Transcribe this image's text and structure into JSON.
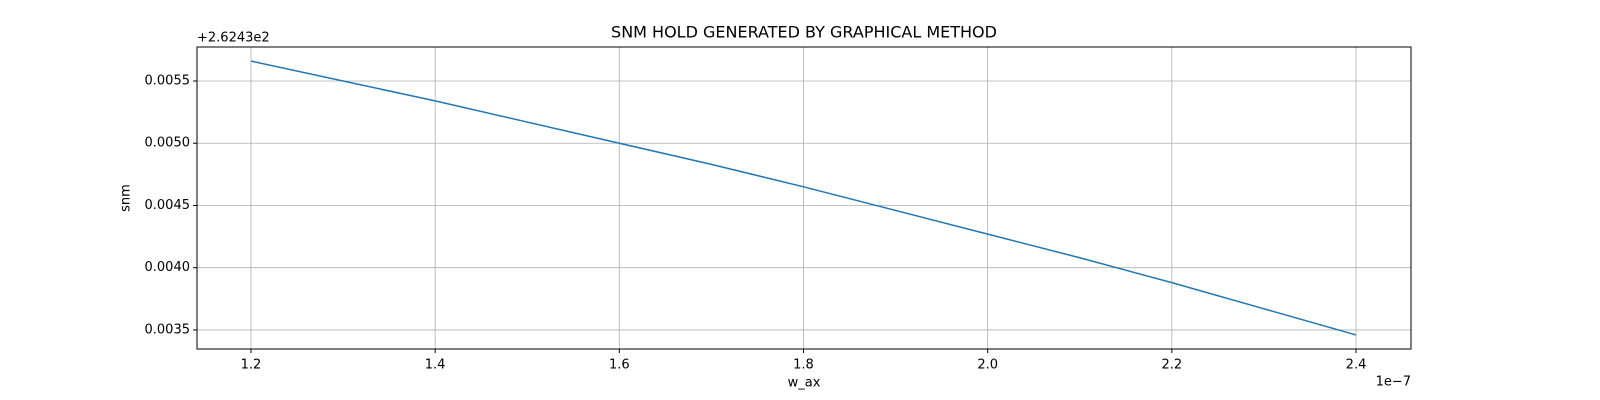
{
  "chart_data": {
    "type": "line",
    "title": "SNM HOLD GENERATED BY GRAPHICAL METHOD",
    "x_label": "w_ax",
    "y_label": "snm",
    "x_offset_text": "1e−7",
    "y_offset_text": "+2.6243e2",
    "x": [
      1.2,
      1.3,
      1.4,
      1.5,
      1.6,
      1.7,
      1.8,
      1.9,
      2.0,
      2.1,
      2.2,
      2.3,
      2.4
    ],
    "values": [
      0.00566,
      0.0055,
      0.00534,
      0.00517,
      0.005,
      0.00483,
      0.00465,
      0.00446,
      0.00427,
      0.00408,
      0.00388,
      0.00367,
      0.00346
    ],
    "color": "#1f77b4",
    "xlim": [
      1.1414,
      2.4597
    ],
    "ylim": [
      0.003347,
      0.005773
    ],
    "xticks": [
      1.2,
      1.4,
      1.6,
      1.8,
      {
        "value": 2.0,
        "label": "2.0"
      },
      2.2,
      2.4
    ],
    "yticks": [
      0.0035,
      {
        "value": 0.004,
        "label": "0.0040"
      },
      0.0045,
      {
        "value": 0.005,
        "label": "0.0050"
      },
      0.0055
    ],
    "grid": true
  }
}
